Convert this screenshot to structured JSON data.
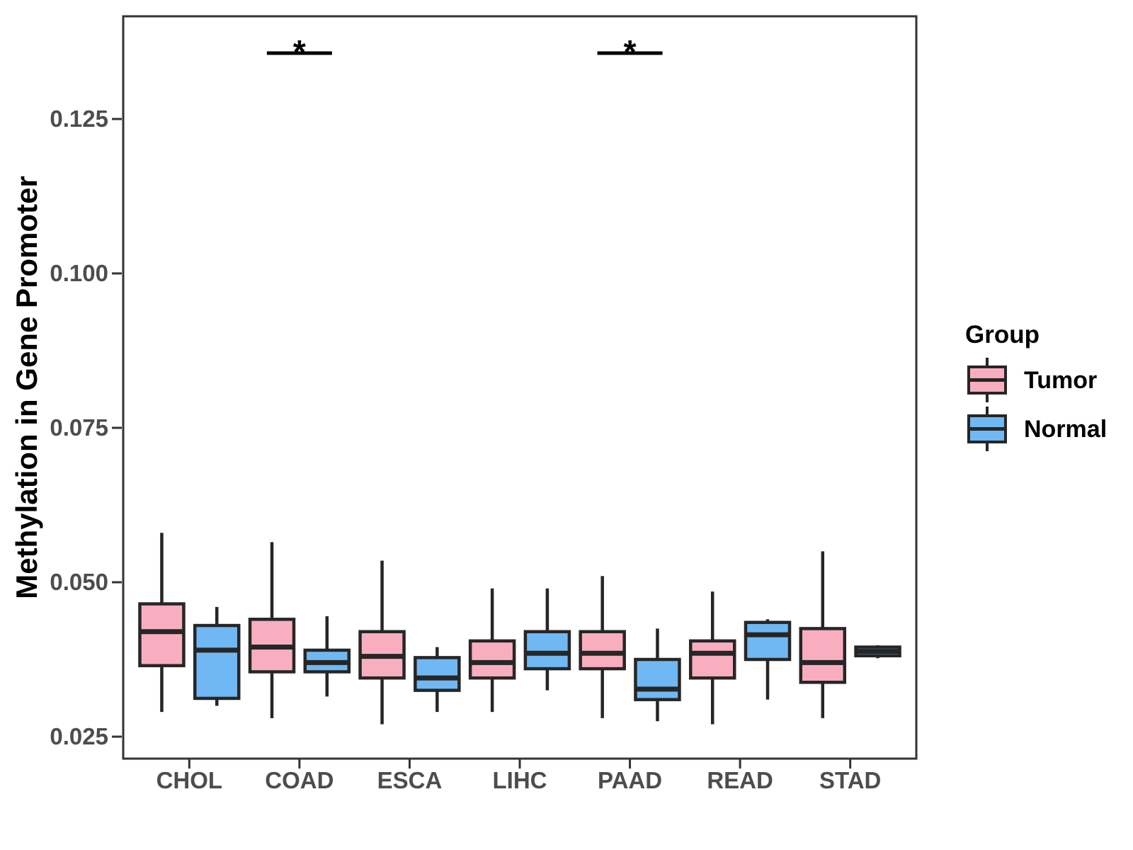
{
  "figure": {
    "background": "#FFFFFF"
  },
  "chart_data": {
    "type": "boxplot",
    "title": "",
    "xlabel": "",
    "ylabel": "Methylation in Gene Promoter",
    "categories": [
      "CHOL",
      "COAD",
      "ESCA",
      "LIHC",
      "PAAD",
      "READ",
      "STAD"
    ],
    "y_ticks": [
      0.025,
      0.05,
      0.075,
      0.1,
      0.125
    ],
    "y_tick_labels": [
      "0.025",
      "0.050",
      "0.075",
      "0.100",
      "0.125"
    ],
    "ylim": [
      0.0215,
      0.1415
    ],
    "grid": false,
    "legend": {
      "title": "Group",
      "position": "right",
      "items": [
        {
          "label": "Tumor",
          "color": "#F9AEC0"
        },
        {
          "label": "Normal",
          "color": "#6FB8F3"
        }
      ]
    },
    "series": [
      {
        "name": "Tumor",
        "color": "#F9AEC0",
        "boxes": [
          {
            "category": "CHOL",
            "min": 0.029,
            "q1": 0.0365,
            "median": 0.042,
            "q3": 0.0465,
            "max": 0.058
          },
          {
            "category": "COAD",
            "min": 0.028,
            "q1": 0.0355,
            "median": 0.0395,
            "q3": 0.044,
            "max": 0.0565
          },
          {
            "category": "ESCA",
            "min": 0.027,
            "q1": 0.0345,
            "median": 0.038,
            "q3": 0.042,
            "max": 0.0535
          },
          {
            "category": "LIHC",
            "min": 0.029,
            "q1": 0.0345,
            "median": 0.037,
            "q3": 0.0405,
            "max": 0.049
          },
          {
            "category": "PAAD",
            "min": 0.028,
            "q1": 0.036,
            "median": 0.0385,
            "q3": 0.042,
            "max": 0.051
          },
          {
            "category": "READ",
            "min": 0.027,
            "q1": 0.0345,
            "median": 0.0385,
            "q3": 0.0405,
            "max": 0.0485
          },
          {
            "category": "STAD",
            "min": 0.028,
            "q1": 0.0338,
            "median": 0.037,
            "q3": 0.0425,
            "max": 0.055
          }
        ]
      },
      {
        "name": "Normal",
        "color": "#6FB8F3",
        "boxes": [
          {
            "category": "CHOL",
            "min": 0.03,
            "q1": 0.0312,
            "median": 0.039,
            "q3": 0.043,
            "max": 0.046
          },
          {
            "category": "COAD",
            "min": 0.0315,
            "q1": 0.0355,
            "median": 0.037,
            "q3": 0.039,
            "max": 0.0445
          },
          {
            "category": "ESCA",
            "min": 0.029,
            "q1": 0.0325,
            "median": 0.0345,
            "q3": 0.0378,
            "max": 0.0395
          },
          {
            "category": "LIHC",
            "min": 0.0325,
            "q1": 0.036,
            "median": 0.0385,
            "q3": 0.042,
            "max": 0.049
          },
          {
            "category": "PAAD",
            "min": 0.0275,
            "q1": 0.031,
            "median": 0.0327,
            "q3": 0.0375,
            "max": 0.0425
          },
          {
            "category": "READ",
            "min": 0.031,
            "q1": 0.0375,
            "median": 0.0415,
            "q3": 0.0435,
            "max": 0.044
          },
          {
            "category": "STAD",
            "min": 0.0377,
            "q1": 0.0381,
            "median": 0.0388,
            "q3": 0.0395,
            "max": 0.0398
          }
        ]
      }
    ],
    "significance_brackets": [
      {
        "category": "COAD",
        "label": "*"
      },
      {
        "category": "PAAD",
        "label": "*"
      }
    ],
    "colors": {
      "box_stroke": "#262626",
      "panel_border": "#333333",
      "tick_mark": "#333333",
      "axis_text": "#4D4D4D",
      "axis_title_text": "#000000",
      "legend_text": "#000000",
      "significance": "#000000"
    }
  }
}
